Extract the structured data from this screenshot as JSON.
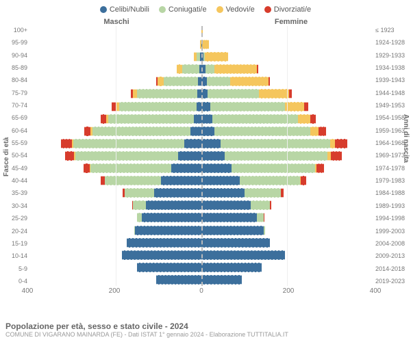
{
  "legend": [
    {
      "label": "Celibi/Nubili",
      "color": "#3c6f9c"
    },
    {
      "label": "Coniugati/e",
      "color": "#b8d6a5"
    },
    {
      "label": "Vedovi/e",
      "color": "#f5c65d"
    },
    {
      "label": "Divorziati/e",
      "color": "#d73c2c"
    }
  ],
  "header": {
    "male": "Maschi",
    "female": "Femmine"
  },
  "axis": {
    "left_title": "Fasce di età",
    "right_title": "Anni di nascita",
    "left_header": "≤ 1923",
    "max": 400,
    "ticks": [
      400,
      200,
      0,
      200,
      400
    ]
  },
  "footer": {
    "title": "Popolazione per età, sesso e stato civile - 2024",
    "sub": "COMUNE DI VIGARANO MAINARDA (FE) - Dati ISTAT 1° gennaio 2024 - Elaborazione TUTTITALIA.IT"
  },
  "colors": {
    "single": "#3c6f9c",
    "married": "#b8d6a5",
    "widowed": "#f5c65d",
    "divorced": "#d73c2c",
    "bg": "#ffffff",
    "grid": "#eeeeee",
    "center": "#bbbbbb"
  },
  "rows": [
    {
      "age": "100+",
      "birth": "≤ 1923",
      "m": [
        0,
        0,
        0,
        0
      ],
      "f": [
        0,
        0,
        3,
        0
      ]
    },
    {
      "age": "95-99",
      "birth": "1924-1928",
      "m": [
        0,
        0,
        3,
        0
      ],
      "f": [
        2,
        0,
        15,
        0
      ]
    },
    {
      "age": "90-94",
      "birth": "1929-1933",
      "m": [
        3,
        8,
        6,
        0
      ],
      "f": [
        5,
        3,
        55,
        0
      ]
    },
    {
      "age": "85-89",
      "birth": "1934-1938",
      "m": [
        5,
        40,
        12,
        0
      ],
      "f": [
        10,
        20,
        100,
        2
      ]
    },
    {
      "age": "80-84",
      "birth": "1939-1943",
      "m": [
        8,
        80,
        15,
        3
      ],
      "f": [
        12,
        55,
        90,
        3
      ]
    },
    {
      "age": "75-79",
      "birth": "1944-1948",
      "m": [
        10,
        140,
        10,
        5
      ],
      "f": [
        15,
        120,
        70,
        6
      ]
    },
    {
      "age": "70-74",
      "birth": "1949-1953",
      "m": [
        12,
        180,
        8,
        10
      ],
      "f": [
        20,
        175,
        45,
        10
      ]
    },
    {
      "age": "65-69",
      "birth": "1954-1958",
      "m": [
        18,
        200,
        5,
        12
      ],
      "f": [
        25,
        200,
        30,
        12
      ]
    },
    {
      "age": "60-64",
      "birth": "1959-1963",
      "m": [
        25,
        230,
        4,
        15
      ],
      "f": [
        30,
        225,
        18,
        18
      ]
    },
    {
      "age": "55-59",
      "birth": "1964-1968",
      "m": [
        40,
        260,
        3,
        25
      ],
      "f": [
        45,
        255,
        12,
        28
      ]
    },
    {
      "age": "50-54",
      "birth": "1969-1973",
      "m": [
        55,
        240,
        2,
        22
      ],
      "f": [
        55,
        240,
        8,
        25
      ]
    },
    {
      "age": "45-49",
      "birth": "1974-1978",
      "m": [
        70,
        190,
        1,
        15
      ],
      "f": [
        70,
        195,
        4,
        18
      ]
    },
    {
      "age": "40-44",
      "birth": "1979-1983",
      "m": [
        95,
        130,
        0,
        10
      ],
      "f": [
        90,
        140,
        2,
        12
      ]
    },
    {
      "age": "35-39",
      "birth": "1984-1988",
      "m": [
        110,
        70,
        0,
        4
      ],
      "f": [
        100,
        85,
        1,
        6
      ]
    },
    {
      "age": "30-34",
      "birth": "1989-1993",
      "m": [
        130,
        30,
        0,
        2
      ],
      "f": [
        115,
        45,
        0,
        3
      ]
    },
    {
      "age": "25-29",
      "birth": "1994-1998",
      "m": [
        140,
        10,
        0,
        0
      ],
      "f": [
        130,
        15,
        0,
        1
      ]
    },
    {
      "age": "20-24",
      "birth": "1999-2003",
      "m": [
        155,
        2,
        0,
        0
      ],
      "f": [
        145,
        3,
        0,
        0
      ]
    },
    {
      "age": "15-19",
      "birth": "2004-2008",
      "m": [
        175,
        0,
        0,
        0
      ],
      "f": [
        160,
        0,
        0,
        0
      ]
    },
    {
      "age": "10-14",
      "birth": "2009-2013",
      "m": [
        185,
        0,
        0,
        0
      ],
      "f": [
        195,
        0,
        0,
        0
      ]
    },
    {
      "age": "5-9",
      "birth": "2014-2018",
      "m": [
        150,
        0,
        0,
        0
      ],
      "f": [
        140,
        0,
        0,
        0
      ]
    },
    {
      "age": "0-4",
      "birth": "2019-2023",
      "m": [
        105,
        0,
        0,
        0
      ],
      "f": [
        95,
        0,
        0,
        0
      ]
    }
  ]
}
